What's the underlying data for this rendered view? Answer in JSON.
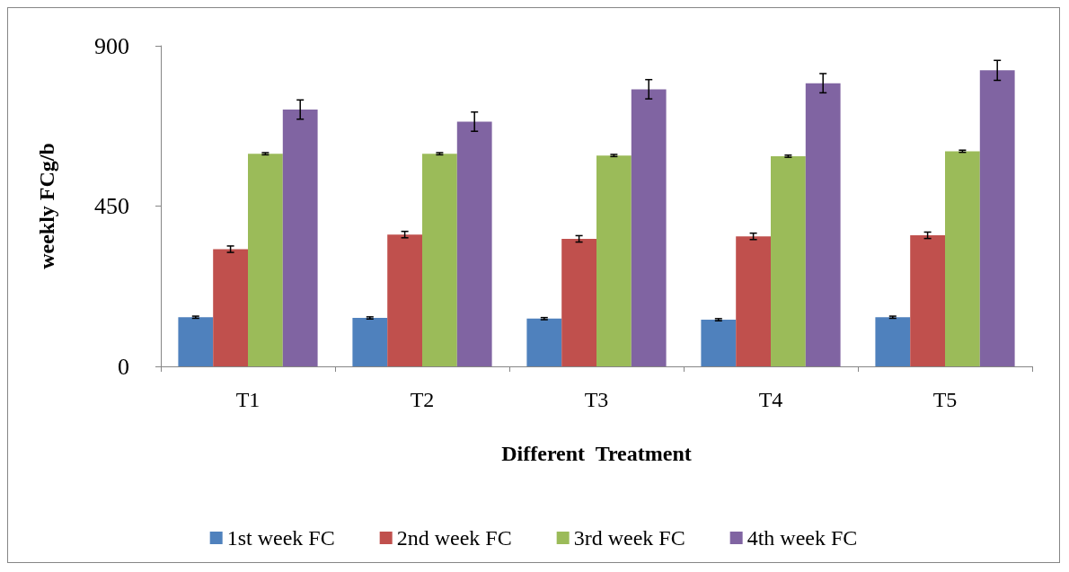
{
  "chart_data": {
    "type": "bar",
    "xlabel": "Different  Treatment",
    "ylabel": "weekly FCg/b",
    "categories": [
      "T1",
      "T2",
      "T3",
      "T4",
      "T5"
    ],
    "series": [
      {
        "name": "1st week FC",
        "color": "#4f81bd",
        "values": [
          138,
          136,
          134,
          131,
          138
        ],
        "errors": [
          3,
          3,
          3,
          3,
          3
        ]
      },
      {
        "name": "2nd week FC",
        "color": "#c0504d",
        "values": [
          329,
          370,
          358,
          365,
          368
        ],
        "errors": [
          9,
          9,
          9,
          9,
          9
        ]
      },
      {
        "name": "3rd week FC",
        "color": "#9bbb59",
        "values": [
          597,
          597,
          592,
          590,
          604
        ],
        "errors": [
          3,
          3,
          3,
          3,
          3
        ]
      },
      {
        "name": "4th week FC",
        "color": "#8064a2",
        "values": [
          721,
          687,
          778,
          795,
          831
        ],
        "errors": [
          27,
          27,
          27,
          27,
          28
        ]
      }
    ],
    "ylim": [
      0,
      900
    ],
    "yticks": [
      0,
      450,
      900
    ],
    "grid": false,
    "legend": "bottom"
  }
}
